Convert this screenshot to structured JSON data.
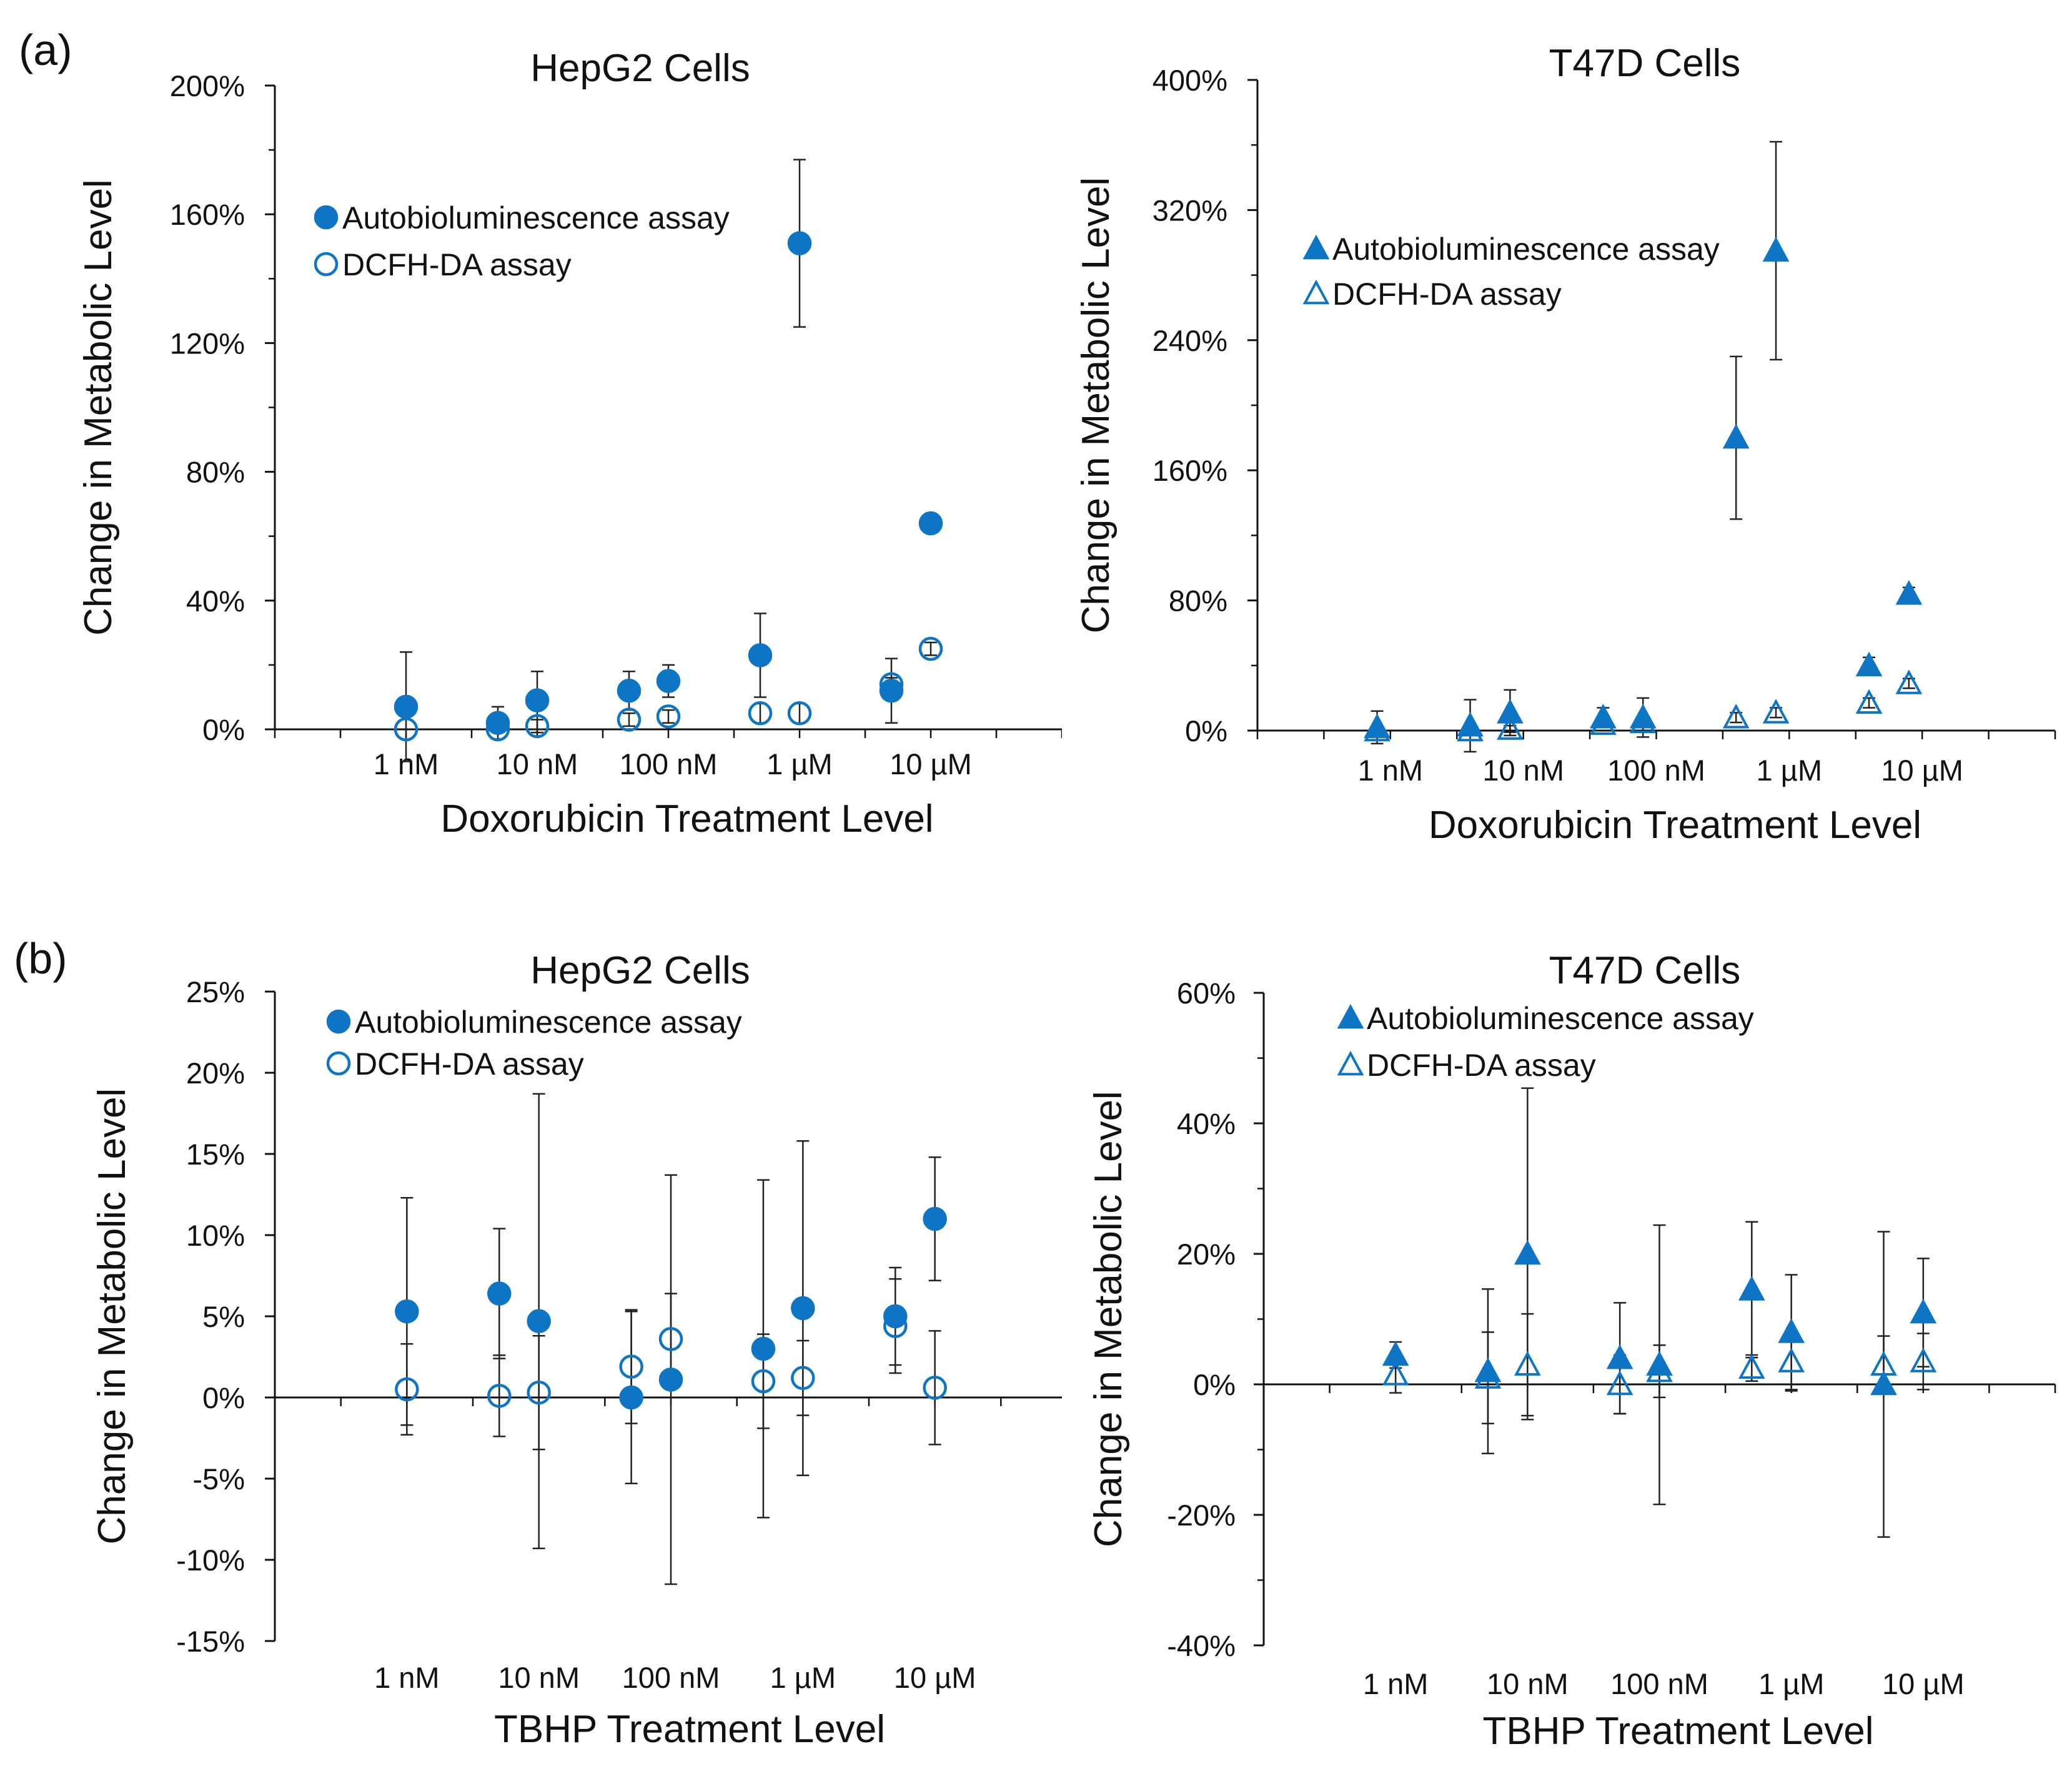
{
  "figure": {
    "panel_labels": [
      "(a)",
      "(b)"
    ],
    "colors": {
      "marker": "#0E74C4",
      "errorbar": "#222222",
      "axis": "#111111",
      "text": "#111111"
    }
  },
  "chart_data": [
    {
      "id": "a-hepg2",
      "type": "scatter",
      "title": "HepG2 Cells",
      "xlabel": "Doxorubicin Treatment Level",
      "ylabel": "Change in Metabolic Level",
      "ylim": [
        0,
        200
      ],
      "yticks": [
        0,
        40,
        80,
        120,
        160,
        200
      ],
      "ytick_labels": [
        "0%",
        "40%",
        "80%",
        "120%",
        "160%",
        "200%"
      ],
      "ytick_minor": true,
      "xlim": [
        0,
        6
      ],
      "xtick_positions": [
        1,
        2,
        3,
        4,
        5
      ],
      "xtick_labels": [
        "1 nM",
        "10 nM",
        "100 nM",
        "1 µM",
        "10 µM"
      ],
      "marker": "circle",
      "legend_position": "upper-left",
      "series": [
        {
          "name": "Autobioluminescence assay",
          "filled": true,
          "x": [
            1,
            1.7,
            2,
            2.7,
            3,
            3.7,
            4,
            4.7,
            5
          ],
          "y": [
            7,
            2,
            9,
            12,
            15,
            23,
            151,
            12,
            64
          ],
          "err": [
            17,
            5,
            9,
            6,
            5,
            13,
            26,
            10,
            0
          ]
        },
        {
          "name": "DCFH-DA assay",
          "filled": false,
          "x": [
            1,
            1.7,
            2,
            2.7,
            3,
            3.7,
            4,
            4.7,
            5
          ],
          "y": [
            0,
            0,
            1,
            3,
            4,
            5,
            5,
            14,
            25
          ],
          "err": [
            0,
            0,
            2,
            2,
            2,
            3,
            3,
            2,
            2
          ]
        }
      ]
    },
    {
      "id": "a-t47d",
      "type": "scatter",
      "title": "T47D Cells",
      "xlabel": "Doxorubicin Treatment Level",
      "ylabel": "Change in Metabolic Level",
      "ylim": [
        0,
        400
      ],
      "yticks": [
        0,
        80,
        160,
        240,
        320,
        400
      ],
      "ytick_labels": [
        "0%",
        "80%",
        "160%",
        "240%",
        "320%",
        "400%"
      ],
      "ytick_minor": true,
      "xlim": [
        0,
        6
      ],
      "xtick_positions": [
        1,
        2,
        3,
        4,
        5
      ],
      "xtick_labels": [
        "1 nM",
        "10 nM",
        "100 nM",
        "1 µM",
        "10 µM"
      ],
      "marker": "triangle",
      "legend_position": "upper-left",
      "series": [
        {
          "name": "Autobioluminescence assay",
          "filled": true,
          "x": [
            0.9,
            1.6,
            1.9,
            2.6,
            2.9,
            3.6,
            3.9,
            4.6,
            4.9
          ],
          "y": [
            2,
            3,
            11,
            8,
            8,
            180,
            295,
            40,
            84
          ],
          "err": [
            10,
            16,
            14,
            6,
            12,
            50,
            67,
            5,
            4
          ]
        },
        {
          "name": "DCFH-DA assay",
          "filled": false,
          "x": [
            0.9,
            1.6,
            1.9,
            2.6,
            2.9,
            3.6,
            3.9,
            4.6,
            4.9
          ],
          "y": [
            0,
            0,
            1,
            4,
            5,
            8,
            11,
            17,
            29
          ],
          "err": [
            0,
            0,
            2,
            2,
            2,
            3,
            3,
            3,
            3
          ]
        }
      ]
    },
    {
      "id": "b-hepg2",
      "type": "scatter",
      "title": "HepG2 Cells",
      "xlabel": "TBHP Treatment Level",
      "ylabel": "Change in Metabolic Level",
      "ylim": [
        -15,
        25
      ],
      "yticks": [
        -15,
        -10,
        -5,
        0,
        5,
        10,
        15,
        20,
        25
      ],
      "ytick_labels": [
        "-15%",
        "-10%",
        "-5%",
        "0%",
        "5%",
        "10%",
        "15%",
        "20%",
        "25%"
      ],
      "ytick_minor": false,
      "xlim": [
        0,
        6
      ],
      "xtick_positions": [
        1,
        2,
        3,
        4,
        5
      ],
      "xtick_labels": [
        "1 nM",
        "10 nM",
        "100 nM",
        "1 µM",
        "10 µM"
      ],
      "marker": "circle",
      "legend_position": "top-left",
      "series": [
        {
          "name": "Autobioluminescence assay",
          "filled": true,
          "x": [
            1,
            1.7,
            2,
            2.7,
            3,
            3.7,
            4,
            4.7,
            5
          ],
          "y": [
            5.3,
            6.4,
            4.7,
            0,
            1.1,
            3.0,
            5.5,
            5.0,
            11.0
          ],
          "err": [
            7.0,
            4.0,
            14.0,
            5.3,
            12.6,
            10.4,
            10.3,
            3.0,
            3.8
          ]
        },
        {
          "name": "DCFH-DA assay",
          "filled": false,
          "x": [
            1,
            1.7,
            2,
            2.7,
            3,
            3.7,
            4,
            4.7,
            5
          ],
          "y": [
            0.5,
            0.1,
            0.3,
            1.9,
            3.6,
            1.0,
            1.2,
            4.4,
            0.6
          ],
          "err": [
            2.8,
            2.5,
            3.5,
            3.5,
            2.8,
            2.9,
            2.3,
            2.9,
            3.5
          ]
        }
      ]
    },
    {
      "id": "b-t47d",
      "type": "scatter",
      "title": "T47D Cells",
      "xlabel": "TBHP Treatment Level",
      "ylabel": "Change in Metabolic Level",
      "ylim": [
        -40,
        60
      ],
      "yticks": [
        -40,
        -20,
        0,
        20,
        40,
        60
      ],
      "ytick_labels": [
        "-40%",
        "-20%",
        "0%",
        "20%",
        "40%",
        "60%"
      ],
      "ytick_minor": true,
      "xlim": [
        0,
        6
      ],
      "xtick_positions": [
        1,
        2,
        3,
        4,
        5
      ],
      "xtick_labels": [
        "1 nM",
        "10 nM",
        "100 nM",
        "1 µM",
        "10 µM"
      ],
      "marker": "triangle",
      "legend_position": "top-left",
      "series": [
        {
          "name": "Autobioluminescence assay",
          "filled": true,
          "x": [
            1,
            1.7,
            2,
            2.7,
            3,
            3.7,
            4,
            4.7,
            5
          ],
          "y": [
            4.5,
            2.0,
            20.0,
            4.0,
            3.0,
            14.5,
            8.0,
            0,
            11.0
          ],
          "err": [
            2.0,
            12.6,
            25.4,
            8.5,
            21.4,
            10.4,
            8.8,
            23.4,
            8.3
          ]
        },
        {
          "name": "DCFH-DA assay",
          "filled": false,
          "x": [
            1,
            1.7,
            2,
            2.7,
            3,
            3.7,
            4,
            4.7,
            5
          ],
          "y": [
            1.5,
            1.0,
            3.0,
            0,
            2.0,
            2.5,
            3.5,
            3.0,
            3.5
          ],
          "err": [
            2.8,
            7.0,
            7.8,
            4.5,
            4.0,
            2.0,
            4.5,
            4.4,
            4.3
          ]
        }
      ]
    }
  ]
}
